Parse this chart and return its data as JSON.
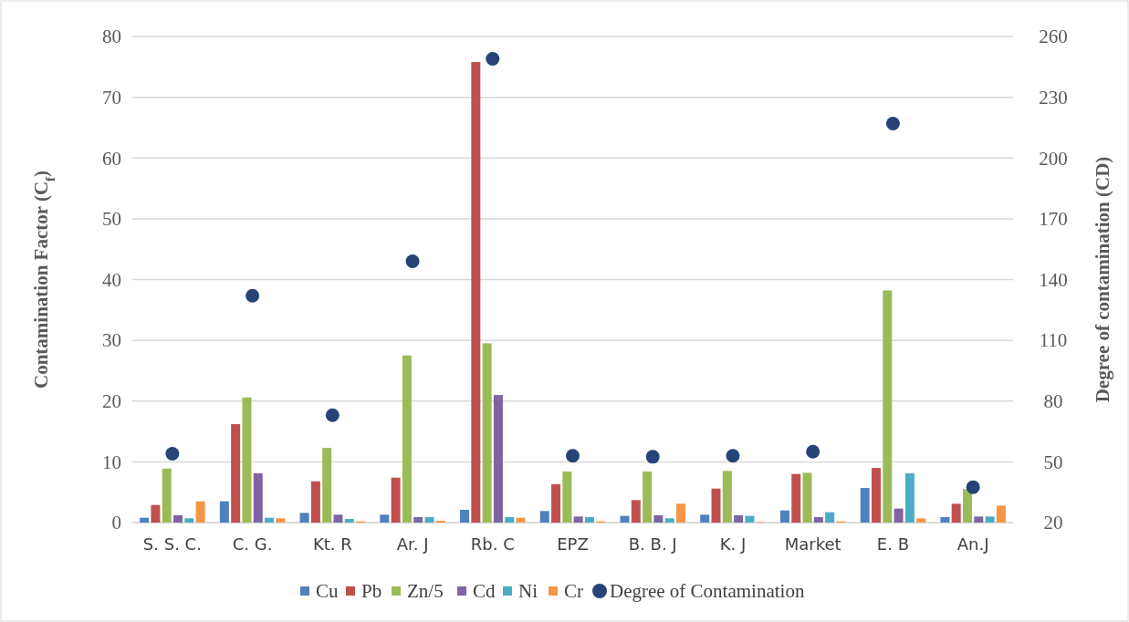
{
  "chart_data": {
    "type": "bar",
    "ylabel": "Contamination Factor (C$_{f}$)",
    "y2label": "Degree of contamination (CD)",
    "categories": [
      "S. S. C.",
      "C. G.",
      "Kt. R",
      "Ar. J",
      "Rb. C",
      "EPZ",
      "B. B. J",
      "K. J",
      "Market",
      "E. B",
      "An.J"
    ],
    "series": [
      {
        "name": "Cu",
        "color": "#4f81bd",
        "values": [
          0.8,
          3.5,
          1.6,
          1.3,
          2.1,
          1.9,
          1.1,
          1.3,
          2.0,
          5.7,
          0.9
        ]
      },
      {
        "name": "Pb",
        "color": "#c0504d",
        "values": [
          2.9,
          16.2,
          6.8,
          7.4,
          75.8,
          6.3,
          3.7,
          5.6,
          8.0,
          9.0,
          3.1
        ]
      },
      {
        "name": "Zn/5",
        "color": "#9bbb59",
        "values": [
          8.9,
          20.6,
          12.3,
          27.5,
          29.5,
          8.4,
          8.4,
          8.5,
          8.2,
          38.2,
          5.5
        ]
      },
      {
        "name": "Cd",
        "color": "#8064a2",
        "values": [
          1.2,
          8.1,
          1.3,
          0.9,
          21.0,
          1.0,
          1.2,
          1.2,
          0.9,
          2.3,
          1.0
        ]
      },
      {
        "name": "Ni",
        "color": "#4bacc6",
        "values": [
          0.7,
          0.8,
          0.6,
          0.9,
          0.9,
          0.9,
          0.7,
          1.1,
          1.7,
          8.1,
          1.0
        ]
      },
      {
        "name": "Cr",
        "color": "#f79646",
        "values": [
          3.5,
          0.7,
          0.2,
          0.3,
          0.8,
          0.2,
          3.1,
          0.1,
          0.2,
          0.7,
          2.8
        ]
      },
      {
        "name": "Degree of Contamination",
        "type": "scatter",
        "axis": "y2",
        "marker": "circle",
        "color": "#264478",
        "values": [
          54,
          132,
          73,
          149,
          249,
          53,
          52.5,
          53,
          55,
          217,
          37.5
        ]
      }
    ],
    "ylim": [
      0,
      80
    ],
    "yticks": [
      0,
      10,
      20,
      30,
      40,
      50,
      60,
      70,
      80
    ],
    "y2lim": [
      20,
      260
    ],
    "y2ticks": [
      20,
      50,
      80,
      110,
      140,
      170,
      200,
      230,
      260
    ],
    "grid": "y",
    "legend": "bottom"
  }
}
